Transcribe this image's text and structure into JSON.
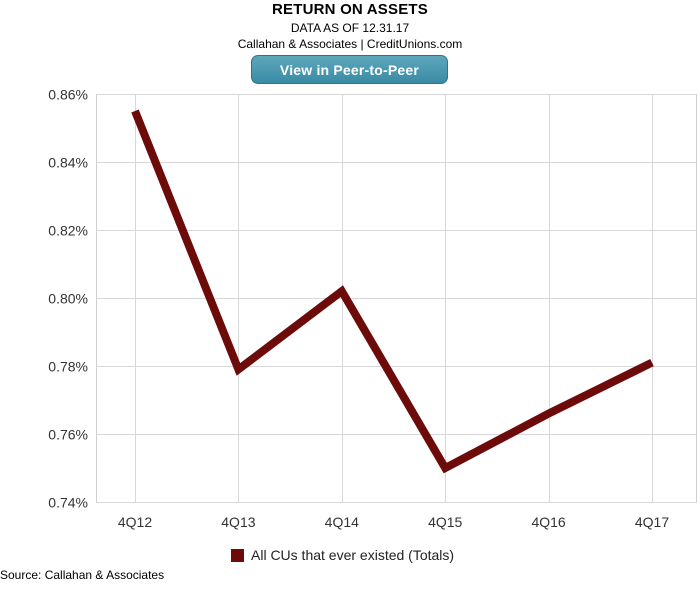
{
  "header": {
    "title": "RETURN ON ASSETS",
    "subtitle": "DATA AS OF 12.31.17",
    "credit": "Callahan & Associates | CreditUnions.com",
    "peer_button_label": "View in Peer-to-Peer"
  },
  "footer": {
    "source": "Source: Callahan & Associates"
  },
  "colors": {
    "series": "#6d0b0b",
    "grid": "#d8d8d8",
    "button": "#3a8ba4"
  },
  "chart_data": {
    "type": "line",
    "categories": [
      "4Q12",
      "4Q13",
      "4Q14",
      "4Q15",
      "4Q16",
      "4Q17"
    ],
    "series": [
      {
        "name": "All CUs that ever existed (Totals)",
        "values": [
          0.855,
          0.779,
          0.802,
          0.75,
          0.766,
          0.781
        ]
      }
    ],
    "ylim": [
      0.74,
      0.86
    ],
    "yticks": [
      0.74,
      0.76,
      0.78,
      0.8,
      0.82,
      0.84,
      0.86
    ],
    "ytick_labels": [
      "0.74%",
      "0.76%",
      "0.78%",
      "0.80%",
      "0.82%",
      "0.84%",
      "0.86%"
    ],
    "grid": true,
    "legend_position": "bottom-center",
    "xlabel": "",
    "ylabel": ""
  }
}
